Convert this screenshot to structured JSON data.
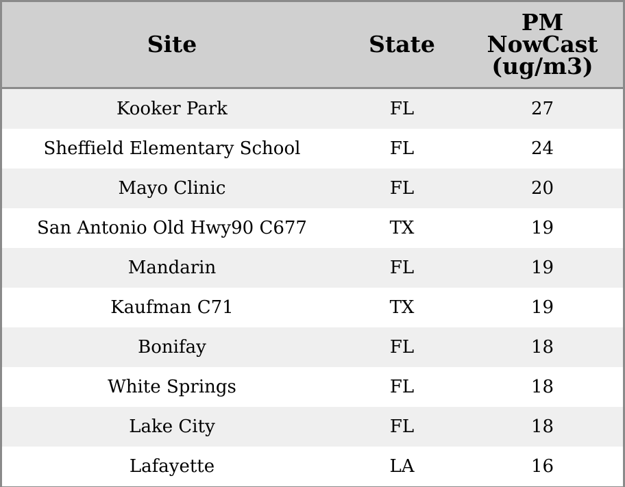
{
  "chart_data": {
    "type": "table",
    "columns": [
      "Site",
      "State",
      "PM\nNowCast\n(ug/m3)"
    ],
    "column_lines": {
      "site": [
        "Site"
      ],
      "state": [
        "State"
      ],
      "pm": [
        "PM",
        "NowCast",
        "(ug/m3)"
      ]
    },
    "rows": [
      {
        "site": "Kooker Park",
        "state": "FL",
        "pm": 27
      },
      {
        "site": "Sheffield Elementary School",
        "state": "FL",
        "pm": 24
      },
      {
        "site": "Mayo Clinic",
        "state": "FL",
        "pm": 20
      },
      {
        "site": "San Antonio Old Hwy90 C677",
        "state": "TX",
        "pm": 19
      },
      {
        "site": "Mandarin",
        "state": "FL",
        "pm": 19
      },
      {
        "site": "Kaufman C71",
        "state": "TX",
        "pm": 19
      },
      {
        "site": "Bonifay",
        "state": "FL",
        "pm": 18
      },
      {
        "site": "White Springs",
        "state": "FL",
        "pm": 18
      },
      {
        "site": "Lake City",
        "state": "FL",
        "pm": 18
      },
      {
        "site": "Lafayette",
        "state": "LA",
        "pm": 16
      }
    ],
    "colors": {
      "header_bg": "#d0d0d0",
      "row_odd_bg": "#efefef",
      "row_even_bg": "#ffffff",
      "border": "#8a8a8a"
    }
  }
}
